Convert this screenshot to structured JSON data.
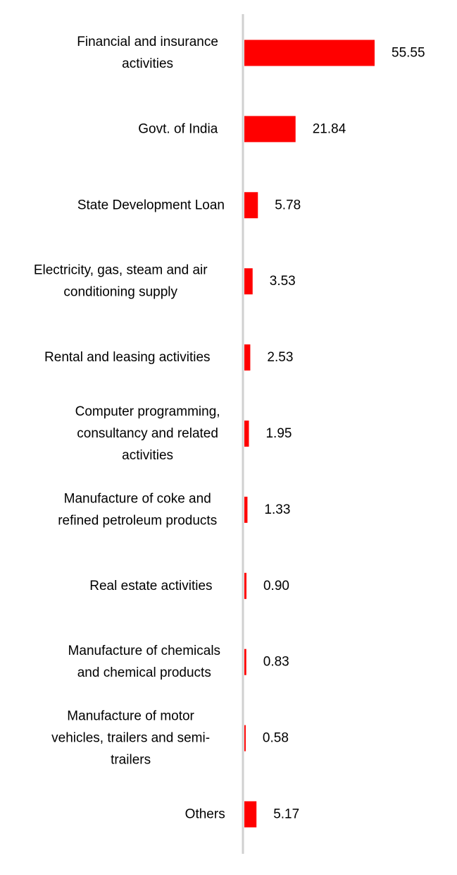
{
  "chart_data": {
    "type": "bar",
    "orientation": "horizontal",
    "categories": [
      "Financial and insurance activities",
      "Govt. of India",
      "State Development Loan",
      "Electricity, gas, steam and air conditioning supply",
      "Rental and leasing activities",
      "Computer programming, consultancy and related activities",
      "Manufacture of coke and refined petroleum products",
      "Real estate activities",
      "Manufacture of chemicals and chemical products",
      "Manufacture of motor vehicles, trailers and semi-trailers",
      "Others"
    ],
    "category_lines": [
      [
        "Financial and insurance",
        "activities"
      ],
      [
        "Govt. of India"
      ],
      [
        "State Development Loan"
      ],
      [
        "Electricity, gas, steam and air",
        "conditioning supply"
      ],
      [
        "Rental and leasing activities"
      ],
      [
        "Computer programming,",
        "consultancy and related",
        "activities"
      ],
      [
        "Manufacture of coke and",
        "refined petroleum products"
      ],
      [
        "Real estate activities"
      ],
      [
        "Manufacture of chemicals",
        "and chemical products"
      ],
      [
        "Manufacture of motor",
        "vehicles, trailers and semi-",
        "trailers"
      ],
      [
        "Others"
      ]
    ],
    "values": [
      55.55,
      21.84,
      5.78,
      3.53,
      2.53,
      1.95,
      1.33,
      0.9,
      0.83,
      0.58,
      5.17
    ],
    "value_labels": [
      "55.55",
      "21.84",
      "5.78",
      "3.53",
      "2.53",
      "1.95",
      "1.33",
      "0.90",
      "0.83",
      "0.58",
      "5.17"
    ],
    "title": "",
    "xlabel": "",
    "ylabel": "",
    "xlim": [
      0,
      60
    ],
    "grid": false,
    "legend": "none",
    "colors": {
      "bar": "#ff0000",
      "axis": "#d0d0d0",
      "text": "#000000"
    }
  }
}
